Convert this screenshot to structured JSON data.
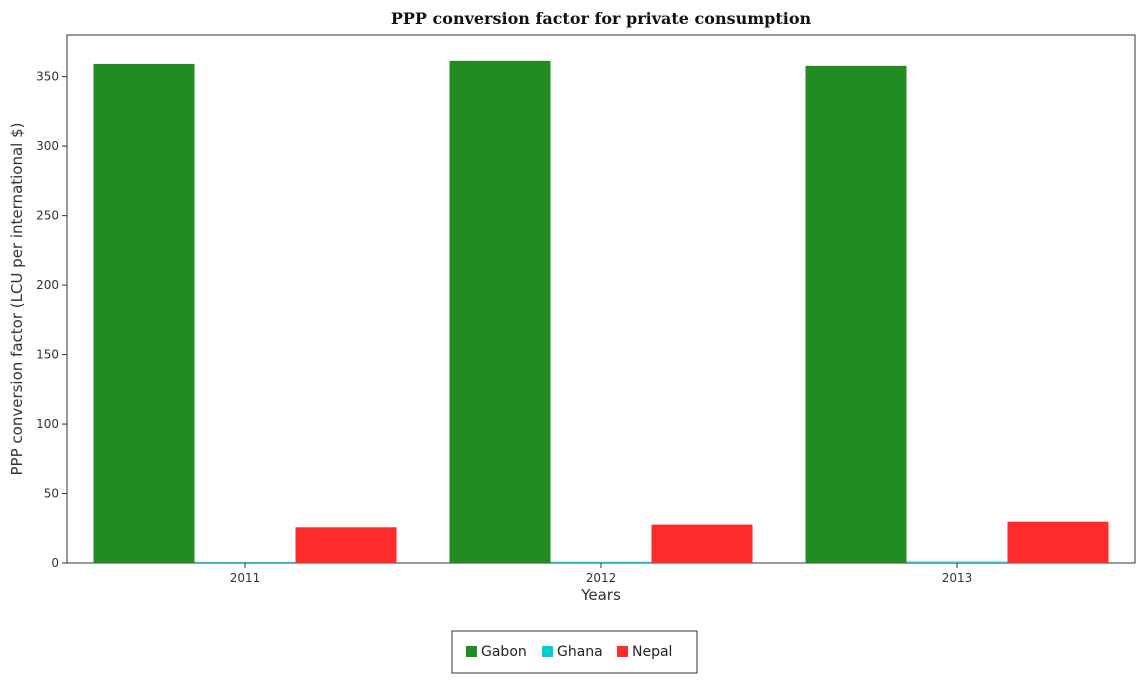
{
  "chart_data": {
    "type": "bar",
    "title": "PPP conversion factor for private consumption",
    "xlabel": "Years",
    "ylabel": "PPP conversion factor (LCU per international $)",
    "categories": [
      "2011",
      "2012",
      "2013"
    ],
    "series": [
      {
        "name": "Gabon",
        "color": "#228B22",
        "values": [
          359.2,
          361.4,
          357.8
        ]
      },
      {
        "name": "Ghana",
        "color": "#00CED1",
        "values": [
          0.8,
          0.9,
          1.0
        ]
      },
      {
        "name": "Nepal",
        "color": "#FF2A2A",
        "values": [
          25.7,
          27.6,
          29.7
        ]
      }
    ],
    "yticks": [
      0,
      50,
      100,
      150,
      200,
      250,
      300,
      350
    ],
    "ylim": [
      0,
      380
    ],
    "grid": false,
    "legend": "bottom-center"
  }
}
